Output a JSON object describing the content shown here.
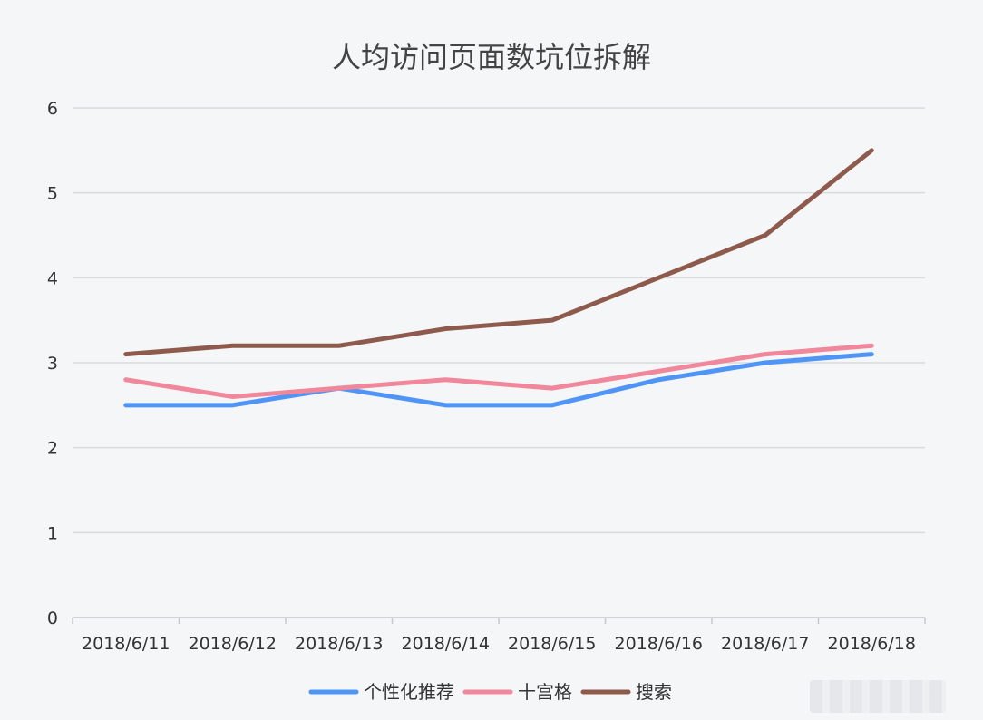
{
  "chart_data": {
    "type": "line",
    "title": "人均访问页面数坑位拆解",
    "categories": [
      "2018/6/11",
      "2018/6/12",
      "2018/6/13",
      "2018/6/14",
      "2018/6/15",
      "2018/6/16",
      "2018/6/17",
      "2018/6/18"
    ],
    "ylim": [
      0,
      6
    ],
    "yticks": [
      0,
      1,
      2,
      3,
      4,
      5,
      6
    ],
    "grid": true,
    "legend_position": "bottom",
    "series": [
      {
        "name": "个性化推荐",
        "color": "#4e95f7",
        "values": [
          2.5,
          2.5,
          2.7,
          2.5,
          2.5,
          2.8,
          3.0,
          3.1
        ]
      },
      {
        "name": "十宫格",
        "color": "#f0879a",
        "values": [
          2.8,
          2.6,
          2.7,
          2.8,
          2.7,
          2.9,
          3.1,
          3.2
        ]
      },
      {
        "name": "搜索",
        "color": "#8e5a4b",
        "values": [
          3.1,
          3.2,
          3.2,
          3.4,
          3.5,
          4.0,
          4.5,
          5.5
        ]
      }
    ]
  }
}
